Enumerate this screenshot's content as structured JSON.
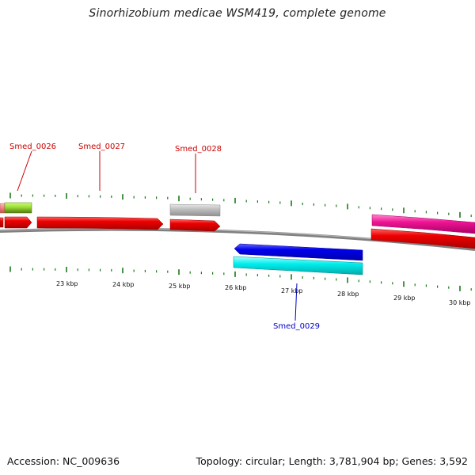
{
  "title": "Sinorhizobium medicae WSM419, complete genome",
  "footer": {
    "accession": "Accession: NC_009636",
    "summary": "Topology: circular; Length: 3,781,904 bp; Genes: 3,592"
  },
  "colors": {
    "background": "#ffffff",
    "backbone": "#808080",
    "tick": "#1a7a1a",
    "label_red": "#cc0000",
    "label_blue": "#0000cc"
  },
  "scale_labels": [
    "23 kbp",
    "24 kbp",
    "25 kbp",
    "26 kbp",
    "27 kbp",
    "28 kbp",
    "29 kbp",
    "30 kbp"
  ],
  "gene_labels": [
    {
      "name": "Smed_0026",
      "color": "#cc0000"
    },
    {
      "name": "Smed_0027",
      "color": "#cc0000"
    },
    {
      "name": "Smed_0028",
      "color": "#cc0000"
    },
    {
      "name": "Smed_0029",
      "color": "#0000cc"
    }
  ],
  "features": [
    {
      "kind": "cog",
      "color": "#f08080",
      "strand": "+",
      "gene": "Smed_0026"
    },
    {
      "kind": "cog",
      "color": "#99dd33",
      "strand": "+",
      "gene": "Smed_0026"
    },
    {
      "kind": "cds",
      "color": "#ee0000",
      "strand": "+",
      "gene": "Smed_0026"
    },
    {
      "kind": "cds",
      "color": "#ee0000",
      "strand": "+",
      "gene": "Smed_0027"
    },
    {
      "kind": "cog",
      "color": "#c0c0c0",
      "strand": "+",
      "gene": "Smed_0028"
    },
    {
      "kind": "cds",
      "color": "#ee0000",
      "strand": "+",
      "gene": "Smed_0028"
    },
    {
      "kind": "cds",
      "color": "#0000ee",
      "strand": "-",
      "gene": "Smed_0029"
    },
    {
      "kind": "cog",
      "color": "#00eeee",
      "strand": "-",
      "gene": "Smed_0029"
    },
    {
      "kind": "cog",
      "color": "#ee1493",
      "strand": "+",
      "gene": ""
    },
    {
      "kind": "cds",
      "color": "#ee0000",
      "strand": "+",
      "gene": ""
    }
  ]
}
